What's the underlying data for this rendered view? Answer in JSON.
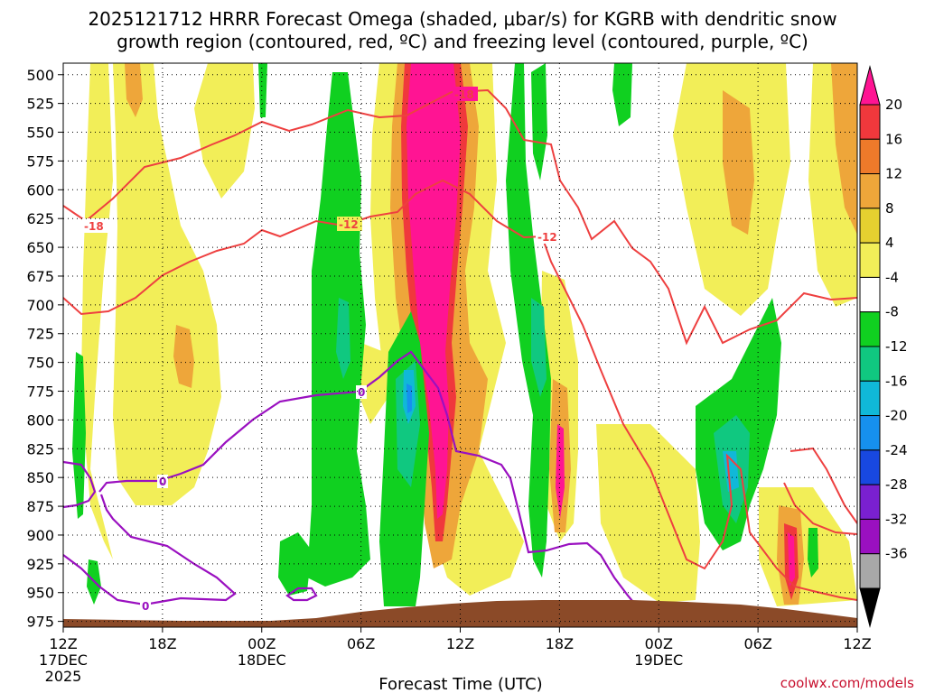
{
  "chart_data": {
    "type": "heatmap",
    "title_line1": "2025121712 HRRR Forecast Omega (shaded, μbar/s) for KGRB with dendritic snow",
    "title_line2": "growth region (contoured, red, ºC) and freezing level (contoured, purple, ºC)",
    "xlabel": "Forecast Time (UTC)",
    "credit": "coolwx.com/models",
    "x_range_hours": [
      0,
      48
    ],
    "y_range_mb": [
      980,
      490
    ],
    "y_ticks": [
      500,
      525,
      550,
      575,
      600,
      625,
      650,
      675,
      700,
      725,
      750,
      775,
      800,
      825,
      850,
      875,
      900,
      925,
      950,
      975
    ],
    "x_ticks": [
      {
        "hour": 0,
        "label": "12Z",
        "sub": "17DEC",
        "sub2": "2025"
      },
      {
        "hour": 6,
        "label": "18Z",
        "sub": "",
        "sub2": ""
      },
      {
        "hour": 12,
        "label": "00Z",
        "sub": "18DEC",
        "sub2": ""
      },
      {
        "hour": 18,
        "label": "06Z",
        "sub": "",
        "sub2": ""
      },
      {
        "hour": 24,
        "label": "12Z",
        "sub": "",
        "sub2": ""
      },
      {
        "hour": 30,
        "label": "18Z",
        "sub": "",
        "sub2": ""
      },
      {
        "hour": 36,
        "label": "00Z",
        "sub": "19DEC",
        "sub2": ""
      },
      {
        "hour": 42,
        "label": "06Z",
        "sub": "",
        "sub2": ""
      },
      {
        "hour": 48,
        "label": "12Z",
        "sub": "",
        "sub2": ""
      }
    ],
    "colorbar": {
      "labels": [
        "20",
        "16",
        "12",
        "8",
        "4",
        "-4",
        "-8",
        "-12",
        "-16",
        "-20",
        "-24",
        "-28",
        "-32",
        "-36"
      ],
      "colors_top_to_bottom": [
        "#ff1493",
        "#f0383c",
        "#ee7a2a",
        "#eea63a",
        "#e6d030",
        "#f2ee58",
        "#ffffff",
        "#10d020",
        "#10c880",
        "#10b8d8",
        "#1690ee",
        "#1848e0",
        "#7a20d0",
        "#9a10c0",
        "#a8a8a8",
        "#000000"
      ]
    },
    "contour_labels": {
      "dgz_cold": "-18",
      "dgz_warm": "-12",
      "freezing": "0"
    },
    "regions": [
      {
        "name": "upslope-yellow-left",
        "value": 5,
        "hour_start": 2.5,
        "hour_end": 9.5,
        "mb_top": 490,
        "mb_bottom": 920
      },
      {
        "name": "early-green-column",
        "value": -6,
        "hour_start": 15,
        "hour_end": 21.5,
        "mb_top": 500,
        "mb_bottom": 955
      },
      {
        "name": "main-ascent-column",
        "value": 21,
        "hour_start": 20.5,
        "hour_end": 23.5,
        "mb_top": 490,
        "mb_bottom": 920
      },
      {
        "name": "post-green-column",
        "value": -8,
        "hour_start": 27,
        "hour_end": 29.5,
        "mb_top": 490,
        "mb_bottom": 950
      },
      {
        "name": "late-lift-core",
        "value": 20,
        "hour_start": 43,
        "hour_end": 44.5,
        "mb_top": 860,
        "mb_bottom": 955
      }
    ]
  }
}
